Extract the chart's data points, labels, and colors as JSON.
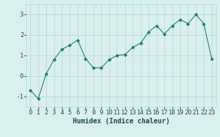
{
  "x": [
    0,
    1,
    2,
    3,
    4,
    5,
    6,
    7,
    8,
    9,
    10,
    11,
    12,
    13,
    14,
    15,
    16,
    17,
    18,
    19,
    20,
    21,
    22,
    23
  ],
  "y": [
    -0.7,
    -1.1,
    0.1,
    0.8,
    1.3,
    1.5,
    1.75,
    0.85,
    0.4,
    0.4,
    0.8,
    1.0,
    1.05,
    1.4,
    1.6,
    2.15,
    2.45,
    2.05,
    2.45,
    2.75,
    2.55,
    3.0,
    2.55,
    0.85
  ],
  "line_color": "#1a7a6a",
  "marker": "D",
  "marker_size": 2.5,
  "bg_color": "#d9f0ef",
  "grid_color": "#b8d8d5",
  "xlabel": "Humidex (Indice chaleur)",
  "ylim": [
    -1.5,
    3.5
  ],
  "xlim": [
    -0.5,
    23.5
  ],
  "yticks": [
    -1,
    0,
    1,
    2,
    3
  ],
  "xticks": [
    0,
    1,
    2,
    3,
    4,
    5,
    6,
    7,
    8,
    9,
    10,
    11,
    12,
    13,
    14,
    15,
    16,
    17,
    18,
    19,
    20,
    21,
    22,
    23
  ],
  "label_color": "#1a4a4a",
  "tick_color": "#1a4a4a",
  "font_size_label": 7,
  "font_size_tick": 6.5
}
